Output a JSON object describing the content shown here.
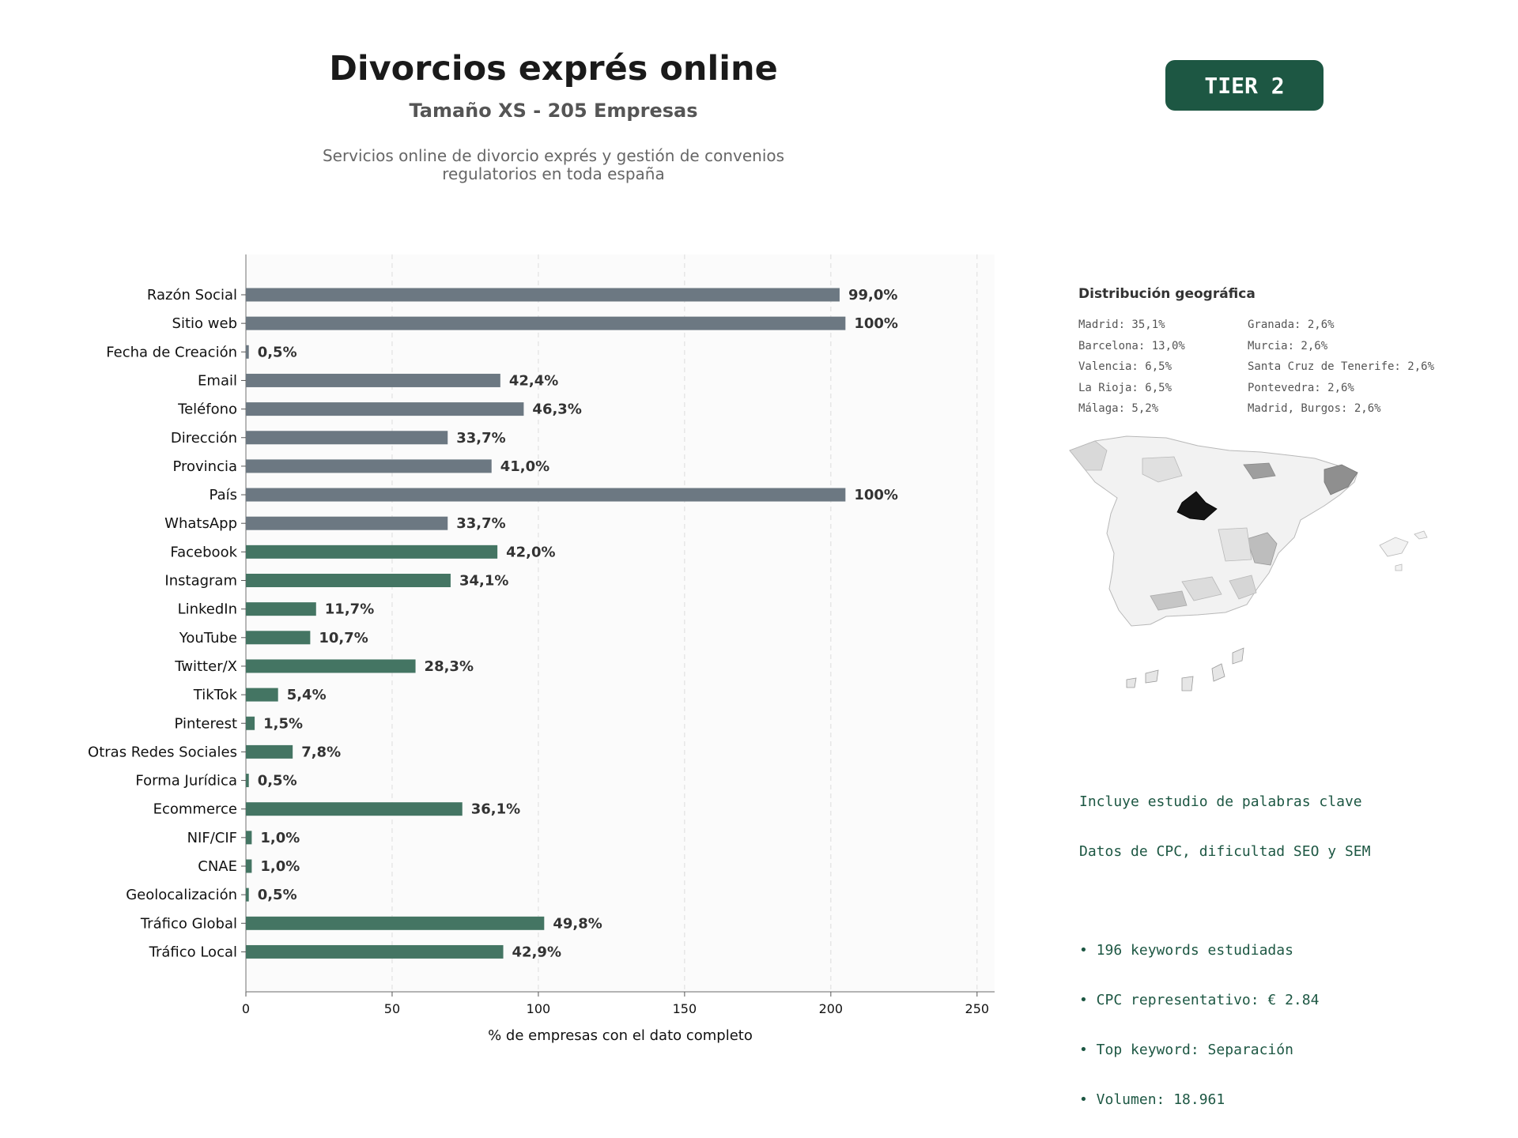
{
  "header": {
    "title": "Divorcios exprés online",
    "subtitle": "Tamaño XS - 205 Empresas",
    "description_line1": "Servicios online de divorcio exprés y gestión de convenios",
    "description_line2": "regulatorios en toda españa",
    "tier": "TIER 2"
  },
  "colors": {
    "gray_bar": "#6c7882",
    "green_bar": "#447563",
    "badge_bg": "#1d5743",
    "keyword_text": "#1d5743"
  },
  "chart_data": {
    "type": "bar",
    "orientation": "horizontal",
    "xlabel": "% de empresas con el dato completo",
    "xlim": [
      0,
      256
    ],
    "xticks": [
      0,
      50,
      100,
      150,
      200,
      250
    ],
    "grid": "vertical-dashed",
    "categories": [
      "Razón Social",
      "Sitio web",
      "Fecha de Creación",
      "Email",
      "Teléfono",
      "Dirección",
      "Provincia",
      "País",
      "WhatsApp",
      "Facebook",
      "Instagram",
      "LinkedIn",
      "YouTube",
      "Twitter/X",
      "TikTok",
      "Pinterest",
      "Otras Redes Sociales",
      "Forma Jurídica",
      "Ecommerce",
      "NIF/CIF",
      "CNAE",
      "Geolocalización",
      "Tráfico Global",
      "Tráfico Local"
    ],
    "values": [
      203,
      205,
      1,
      87,
      95,
      69,
      84,
      205,
      69,
      86,
      70,
      24,
      22,
      58,
      11,
      3,
      16,
      1,
      74,
      2,
      2,
      1,
      102,
      88
    ],
    "labels": [
      "99,0%",
      "100%",
      "0,5%",
      "42,4%",
      "46,3%",
      "33,7%",
      "41,0%",
      "100%",
      "33,7%",
      "42,0%",
      "34,1%",
      "11,7%",
      "10,7%",
      "28,3%",
      "5,4%",
      "1,5%",
      "7,8%",
      "0,5%",
      "36,1%",
      "1,0%",
      "1,0%",
      "0,5%",
      "49,8%",
      "42,9%"
    ],
    "bar_groups": [
      "gray",
      "gray",
      "gray",
      "gray",
      "gray",
      "gray",
      "gray",
      "gray",
      "gray",
      "green",
      "green",
      "green",
      "green",
      "green",
      "green",
      "green",
      "green",
      "green",
      "green",
      "green",
      "green",
      "green",
      "green",
      "green"
    ]
  },
  "geo": {
    "title": "Distribución geográfica",
    "col1": [
      "Madrid: 35,1%",
      "Barcelona: 13,0%",
      "Valencia: 6,5%",
      "La Rioja: 6,5%",
      "Málaga: 5,2%"
    ],
    "col2": [
      "Granada: 2,6%",
      "Murcia: 2,6%",
      "Santa Cruz de Tenerife: 2,6%",
      "Pontevedra: 2,6%",
      "Madrid, Burgos: 2,6%"
    ]
  },
  "keywords": {
    "line1": "Incluye estudio de palabras clave",
    "line2": "Datos de CPC, dificultad SEO y SEM",
    "bullets": [
      "• 196 keywords estudiadas",
      "• CPC representativo: € 2.84",
      "• Top keyword: Separación",
      "• Volumen: 18.961"
    ]
  }
}
